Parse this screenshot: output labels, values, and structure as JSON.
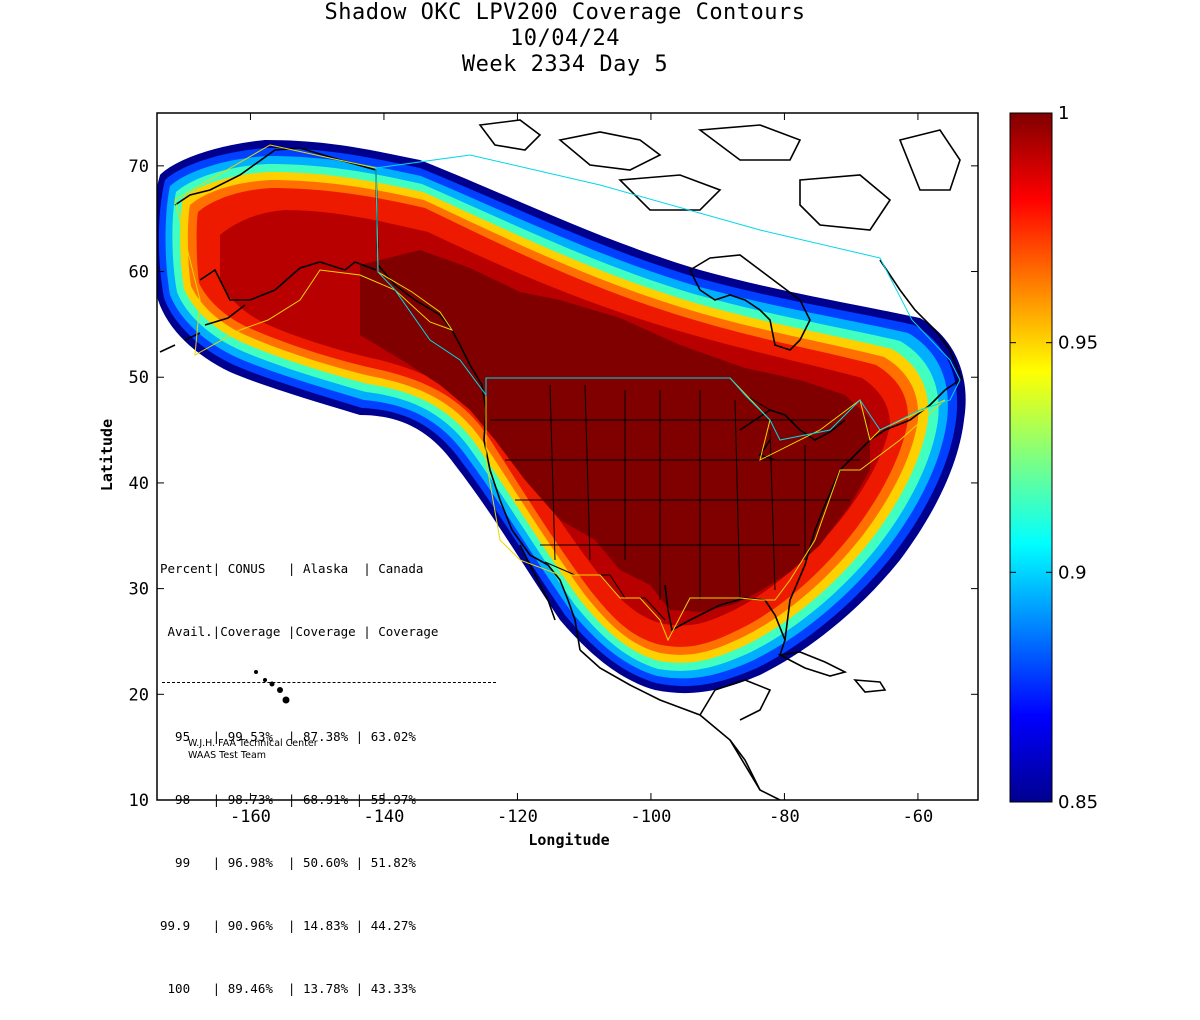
{
  "title": {
    "line1": "Shadow OKC LPV200 Coverage Contours",
    "line2": "10/04/24",
    "line3": "Week 2334 Day 5"
  },
  "map": {
    "xlabel": "Longitude",
    "ylabel": "Latitude",
    "xlim": [
      -174,
      -51
    ],
    "ylim": [
      10,
      75
    ],
    "x_ticks": [
      "-160",
      "-140",
      "-120",
      "-100",
      "-80",
      "-60"
    ],
    "x_tick_values": [
      -160,
      -140,
      -120,
      -100,
      -80,
      -60
    ],
    "y_ticks": [
      "10",
      "20",
      "30",
      "40",
      "50",
      "60",
      "70"
    ],
    "y_tick_values": [
      10,
      20,
      30,
      40,
      50,
      60,
      70
    ],
    "coverage_colormap": "jet",
    "service_volume_colors": {
      "conus": "#e8d800",
      "alaska_canada": "#00d8e8"
    }
  },
  "colorbar": {
    "range": [
      0.85,
      1
    ],
    "labels": [
      "1",
      "0.95",
      "0.9",
      "0.85"
    ],
    "label_values": [
      1,
      0.95,
      0.9,
      0.85
    ]
  },
  "stats": {
    "header1": "Percent| CONUS   | Alaska  | Canada",
    "header2": " Avail.|Coverage |Coverage | Coverage",
    "rows": [
      "  95   | 99.53%  | 87.38% | 63.02%",
      "  98   | 98.73%  | 68.91% | 55.97%",
      "  99   | 96.98%  | 50.60% | 51.82%",
      "99.9   | 90.96%  | 14.83% | 44.27%",
      " 100   | 89.46%  | 13.78% | 43.33%"
    ]
  },
  "credits": {
    "line1": "W.J.H. FAA Technical Center",
    "line2": "WAAS Test Team"
  }
}
